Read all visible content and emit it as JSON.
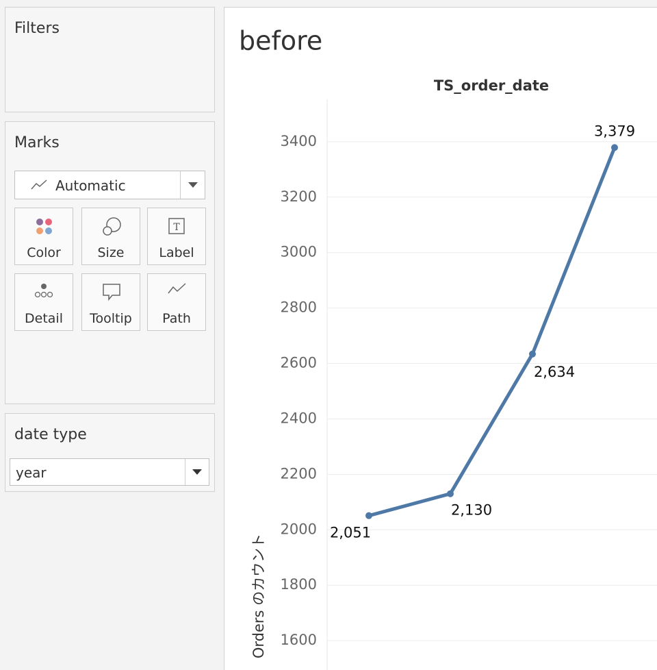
{
  "sidebar": {
    "filters": "Filters",
    "marks": "Marks",
    "mark_type": "Automatic",
    "cards": [
      "Color",
      "Size",
      "Label",
      "Detail",
      "Tooltip",
      "Path"
    ],
    "parameter_title": "date type",
    "parameter_value": "year"
  },
  "chart_data": {
    "type": "line",
    "title": "before",
    "x_label": "TS_order_date",
    "y_label": "Orders のカウント",
    "categories": [
      null,
      null,
      null,
      null
    ],
    "values": [
      2051,
      2130,
      2634,
      3379
    ],
    "value_labels": [
      "2,051",
      "2,130",
      "2,634",
      "3,379"
    ],
    "color": "#4e79a7",
    "ylim": [
      1494,
      3553
    ],
    "yticks": [
      1600,
      1800,
      2000,
      2200,
      2400,
      2600,
      2800,
      3000,
      3200,
      3400
    ],
    "grid": true
  }
}
